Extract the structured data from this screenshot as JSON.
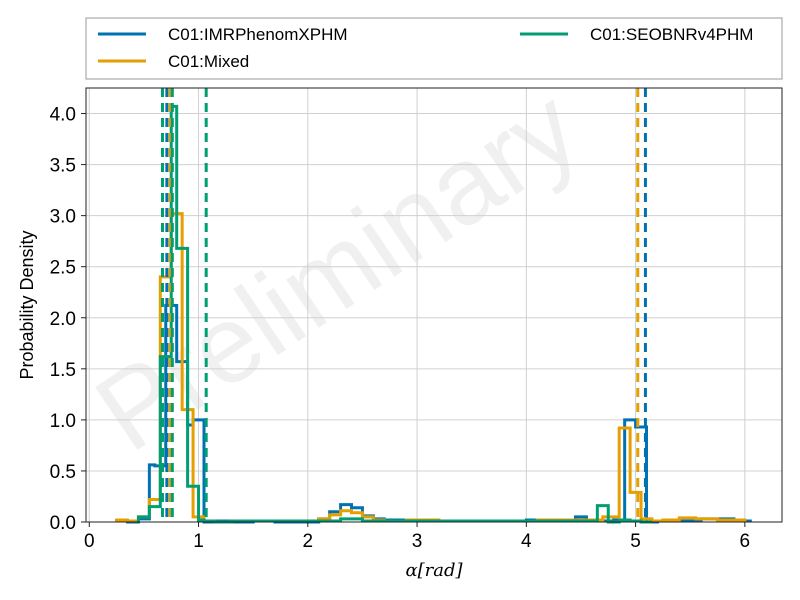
{
  "chart_data": {
    "type": "histogram",
    "title": "",
    "xlabel": "α[rad]",
    "ylabel": "Probability Density",
    "xlim": [
      -0.03,
      6.34
    ],
    "ylim": [
      0,
      4.25
    ],
    "xticks": [
      0,
      1,
      2,
      3,
      4,
      5,
      6
    ],
    "yticks": [
      0.0,
      0.5,
      1.0,
      1.5,
      2.0,
      2.5,
      3.0,
      3.5,
      4.0
    ],
    "grid": true,
    "legend": {
      "placement": "top (outside, above plot)",
      "columns": 2
    },
    "watermark": "Preliminary",
    "series": [
      {
        "name": "C01:IMRPhenomXPHM",
        "color": "#0072b2",
        "bin_edges": [
          0.25,
          0.35,
          0.45,
          0.55,
          0.6,
          0.7,
          0.8,
          0.9,
          0.95,
          1.05,
          1.15,
          1.3,
          1.5,
          1.7,
          1.9,
          2.1,
          2.2,
          2.3,
          2.4,
          2.5,
          2.6,
          2.7,
          2.8,
          2.9,
          3.1,
          3.4,
          3.7,
          4.0,
          4.3,
          4.45,
          4.55,
          4.8,
          4.9,
          5.0,
          5.1,
          5.2,
          5.4,
          5.6,
          5.9,
          6.05
        ],
        "values": [
          0.01,
          0.0,
          0.03,
          0.56,
          0.55,
          2.12,
          1.57,
          0.95,
          1.0,
          0.0,
          0.01,
          0.0,
          0.01,
          0.0,
          0.0,
          0.03,
          0.1,
          0.17,
          0.14,
          0.06,
          0.03,
          0.02,
          0.02,
          0.01,
          0.01,
          0.01,
          0.01,
          0.02,
          0.01,
          0.05,
          0.01,
          0.02,
          1.0,
          0.93,
          0.0,
          0.01,
          0.01,
          0.03,
          0.01
        ]
      },
      {
        "name": "C01:Mixed",
        "color": "#e69f00",
        "bin_edges": [
          0.25,
          0.35,
          0.45,
          0.55,
          0.65,
          0.75,
          0.85,
          0.95,
          1.05,
          1.15,
          1.3,
          1.5,
          1.7,
          1.9,
          2.1,
          2.2,
          2.3,
          2.4,
          2.5,
          2.6,
          2.7,
          2.9,
          3.2,
          3.5,
          3.8,
          4.1,
          4.4,
          4.7,
          4.85,
          4.95,
          5.05,
          5.15,
          5.25,
          5.4,
          5.55,
          5.75,
          6.0
        ],
        "values": [
          0.02,
          0.01,
          0.05,
          0.22,
          2.4,
          3.02,
          1.1,
          0.05,
          0.01,
          0.0,
          0.01,
          0.01,
          0.01,
          0.01,
          0.03,
          0.07,
          0.11,
          0.09,
          0.05,
          0.02,
          0.01,
          0.02,
          0.01,
          0.01,
          0.01,
          0.02,
          0.02,
          0.05,
          0.92,
          0.29,
          0.03,
          0.01,
          0.02,
          0.04,
          0.03,
          0.02
        ]
      },
      {
        "name": "C01:SEOBNRv4PHM",
        "color": "#009e73",
        "bin_edges": [
          0.45,
          0.55,
          0.65,
          0.75,
          0.8,
          0.9,
          1.0,
          1.05,
          1.15,
          1.3,
          1.5,
          1.7,
          1.9,
          2.1,
          2.3,
          2.5,
          2.7,
          2.9,
          3.2,
          3.5,
          3.8,
          4.1,
          4.4,
          4.65,
          4.75,
          4.85,
          4.95,
          5.05,
          5.15
        ],
        "values": [
          0.05,
          0.15,
          1.62,
          4.07,
          2.68,
          0.35,
          0.02,
          0.01,
          0.0,
          0.01,
          0.01,
          0.01,
          0.01,
          0.01,
          0.03,
          0.01,
          0.01,
          0.01,
          0.01,
          0.01,
          0.01,
          0.01,
          0.01,
          0.16,
          0.0,
          0.02,
          0.01,
          0.0
        ]
      }
    ],
    "reference_lines": [
      {
        "series": "C01:IMRPhenomXPHM",
        "x": [
          0.71,
          5.09
        ]
      },
      {
        "series": "C01:Mixed",
        "x": [
          0.74,
          5.02
        ]
      },
      {
        "series": "C01:SEOBNRv4PHM",
        "x": [
          0.67,
          0.76,
          1.07
        ]
      }
    ]
  }
}
